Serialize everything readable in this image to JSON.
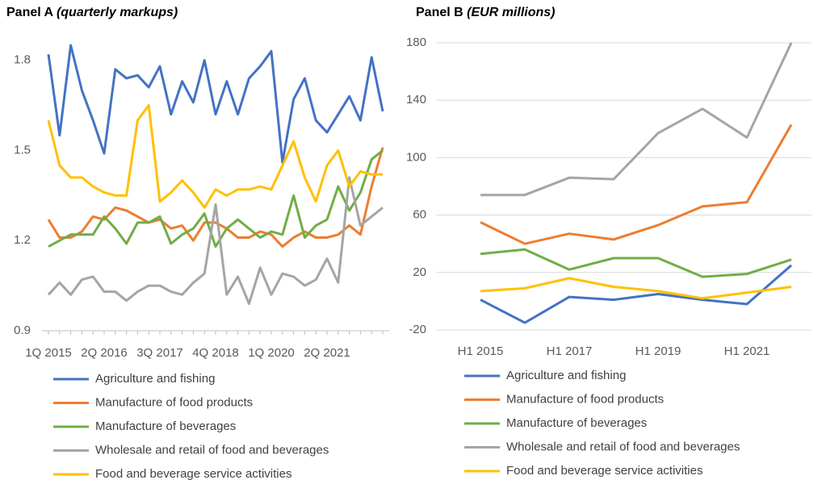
{
  "chart_data": [
    {
      "type": "line",
      "title": "Panel A",
      "subtitle": "(quarterly markups)",
      "categories": [
        "1Q 2015",
        null,
        null,
        null,
        null,
        "2Q 2016",
        null,
        null,
        null,
        null,
        "3Q 2017",
        null,
        null,
        null,
        null,
        "4Q 2018",
        null,
        null,
        null,
        null,
        "1Q 2020",
        null,
        null,
        null,
        null,
        "2Q 2021",
        null,
        null,
        null,
        null,
        null
      ],
      "ylim": [
        0.9,
        1.92
      ],
      "yticks": [
        0.9,
        1.2,
        1.5,
        1.8
      ],
      "grid": false,
      "series": [
        {
          "name": "Agriculture and fishing",
          "color": "#4472c4",
          "values": [
            1.82,
            1.55,
            1.85,
            1.7,
            1.6,
            1.49,
            1.77,
            1.74,
            1.75,
            1.71,
            1.78,
            1.62,
            1.73,
            1.66,
            1.8,
            1.62,
            1.73,
            1.62,
            1.74,
            1.78,
            1.83,
            1.46,
            1.67,
            1.74,
            1.6,
            1.56,
            1.62,
            1.68,
            1.6,
            1.81,
            1.63
          ]
        },
        {
          "name": "Manufacture of food products",
          "color": "#ed7d31",
          "values": [
            1.27,
            1.21,
            1.21,
            1.23,
            1.28,
            1.27,
            1.31,
            1.3,
            1.28,
            1.26,
            1.27,
            1.24,
            1.25,
            1.2,
            1.26,
            1.26,
            1.24,
            1.21,
            1.21,
            1.23,
            1.22,
            1.18,
            1.21,
            1.23,
            1.21,
            1.21,
            1.22,
            1.25,
            1.22,
            1.38,
            1.51
          ]
        },
        {
          "name": "Manufacture of beverages",
          "color": "#70ad47",
          "values": [
            1.18,
            1.2,
            1.22,
            1.22,
            1.22,
            1.28,
            1.24,
            1.19,
            1.26,
            1.26,
            1.28,
            1.19,
            1.22,
            1.24,
            1.29,
            1.18,
            1.24,
            1.27,
            1.24,
            1.21,
            1.23,
            1.22,
            1.35,
            1.21,
            1.25,
            1.27,
            1.38,
            1.3,
            1.36,
            1.47,
            1.5
          ]
        },
        {
          "name": "Wholesale and retail of food and beverages",
          "color": "#a5a5a5",
          "values": [
            1.02,
            1.06,
            1.02,
            1.07,
            1.08,
            1.03,
            1.03,
            1.0,
            1.03,
            1.05,
            1.05,
            1.03,
            1.02,
            1.06,
            1.09,
            1.32,
            1.02,
            1.08,
            0.99,
            1.11,
            1.02,
            1.09,
            1.08,
            1.05,
            1.07,
            1.14,
            1.06,
            1.41,
            1.25,
            1.28,
            1.31
          ]
        },
        {
          "name": "Food and beverage service activities",
          "color": "#ffc000",
          "values": [
            1.6,
            1.45,
            1.41,
            1.41,
            1.38,
            1.36,
            1.35,
            1.35,
            1.6,
            1.65,
            1.33,
            1.36,
            1.4,
            1.36,
            1.31,
            1.37,
            1.35,
            1.37,
            1.37,
            1.38,
            1.37,
            1.45,
            1.53,
            1.41,
            1.33,
            1.45,
            1.5,
            1.38,
            1.43,
            1.42,
            1.42
          ]
        }
      ]
    },
    {
      "type": "line",
      "title": "Panel B",
      "subtitle": "(EUR millions)",
      "categories": [
        "H1 2015",
        null,
        "H1 2017",
        null,
        "H1 2019",
        null,
        "H1 2021",
        null
      ],
      "ylim": [
        -20,
        180
      ],
      "yticks": [
        -20,
        20,
        60,
        100,
        140,
        180
      ],
      "grid": true,
      "series": [
        {
          "name": "Agriculture and fishing",
          "color": "#4472c4",
          "values": [
            1,
            -15,
            3,
            1,
            5,
            1,
            -2,
            25
          ]
        },
        {
          "name": "Manufacture of food products",
          "color": "#ed7d31",
          "values": [
            55,
            40,
            47,
            43,
            53,
            66,
            69,
            123
          ]
        },
        {
          "name": "Manufacture of beverages",
          "color": "#70ad47",
          "values": [
            33,
            36,
            22,
            30,
            30,
            17,
            19,
            29
          ]
        },
        {
          "name": "Wholesale and retail of food and beverages",
          "color": "#a5a5a5",
          "values": [
            74,
            74,
            86,
            85,
            117,
            134,
            114,
            180
          ]
        },
        {
          "name": "Food and beverage service activities",
          "color": "#ffc000",
          "values": [
            7,
            9,
            16,
            10,
            7,
            2,
            6,
            10
          ]
        }
      ]
    }
  ]
}
